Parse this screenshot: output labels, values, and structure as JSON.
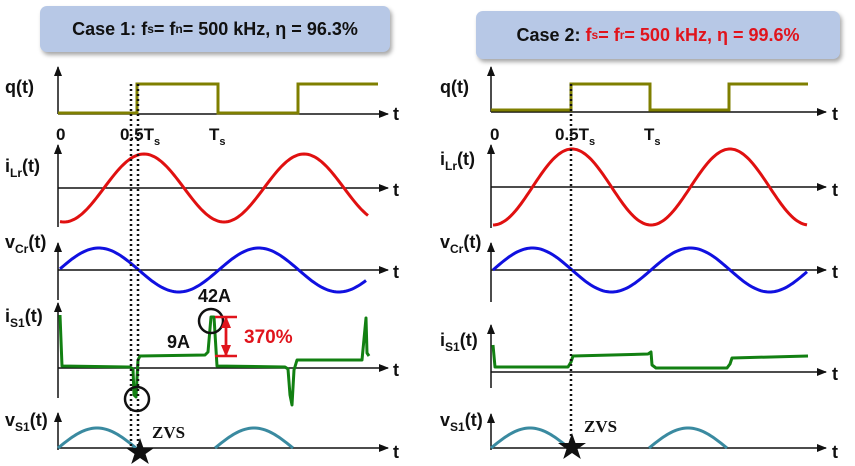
{
  "case1": {
    "prefix": "Case 1: ",
    "f": "f",
    "sub_s": "s",
    "eq1": " = f",
    "sub_n": "n",
    "rest": "= 500 kHz, η = 96.3%"
  },
  "case2": {
    "prefix": "Case 2: ",
    "f": "f",
    "sub_s": "s",
    "eq1": " = f",
    "sub_r": "r",
    "rest": " = 500 kHz, η = 99.6%"
  },
  "signals": {
    "q": {
      "main": "q(t)"
    },
    "iLr": {
      "main": "i",
      "sub": "Lr",
      "tail": "(t)"
    },
    "vCr": {
      "main": "v",
      "sub": "Cr",
      "tail": "(t)"
    },
    "iS1": {
      "main": "i",
      "sub": "S1",
      "tail": "(t)"
    },
    "vS1": {
      "main": "v",
      "sub": "S1",
      "tail": "(t)"
    }
  },
  "axis_label": "t",
  "ticks": {
    "zero": "0",
    "half_main": "0.5T",
    "half_sub": "s",
    "full_main": "T",
    "full_sub": "s"
  },
  "annotations": {
    "current_low": "9A",
    "current_high": "42A",
    "overshoot": "370%",
    "zvs": "ZVS"
  },
  "colors": {
    "q": "#7f7f00",
    "iLr": "#e01010",
    "vCr": "#1010e0",
    "iS1": "#128012",
    "vS1": "#3a8aa0",
    "accent": "#e0141c"
  }
}
